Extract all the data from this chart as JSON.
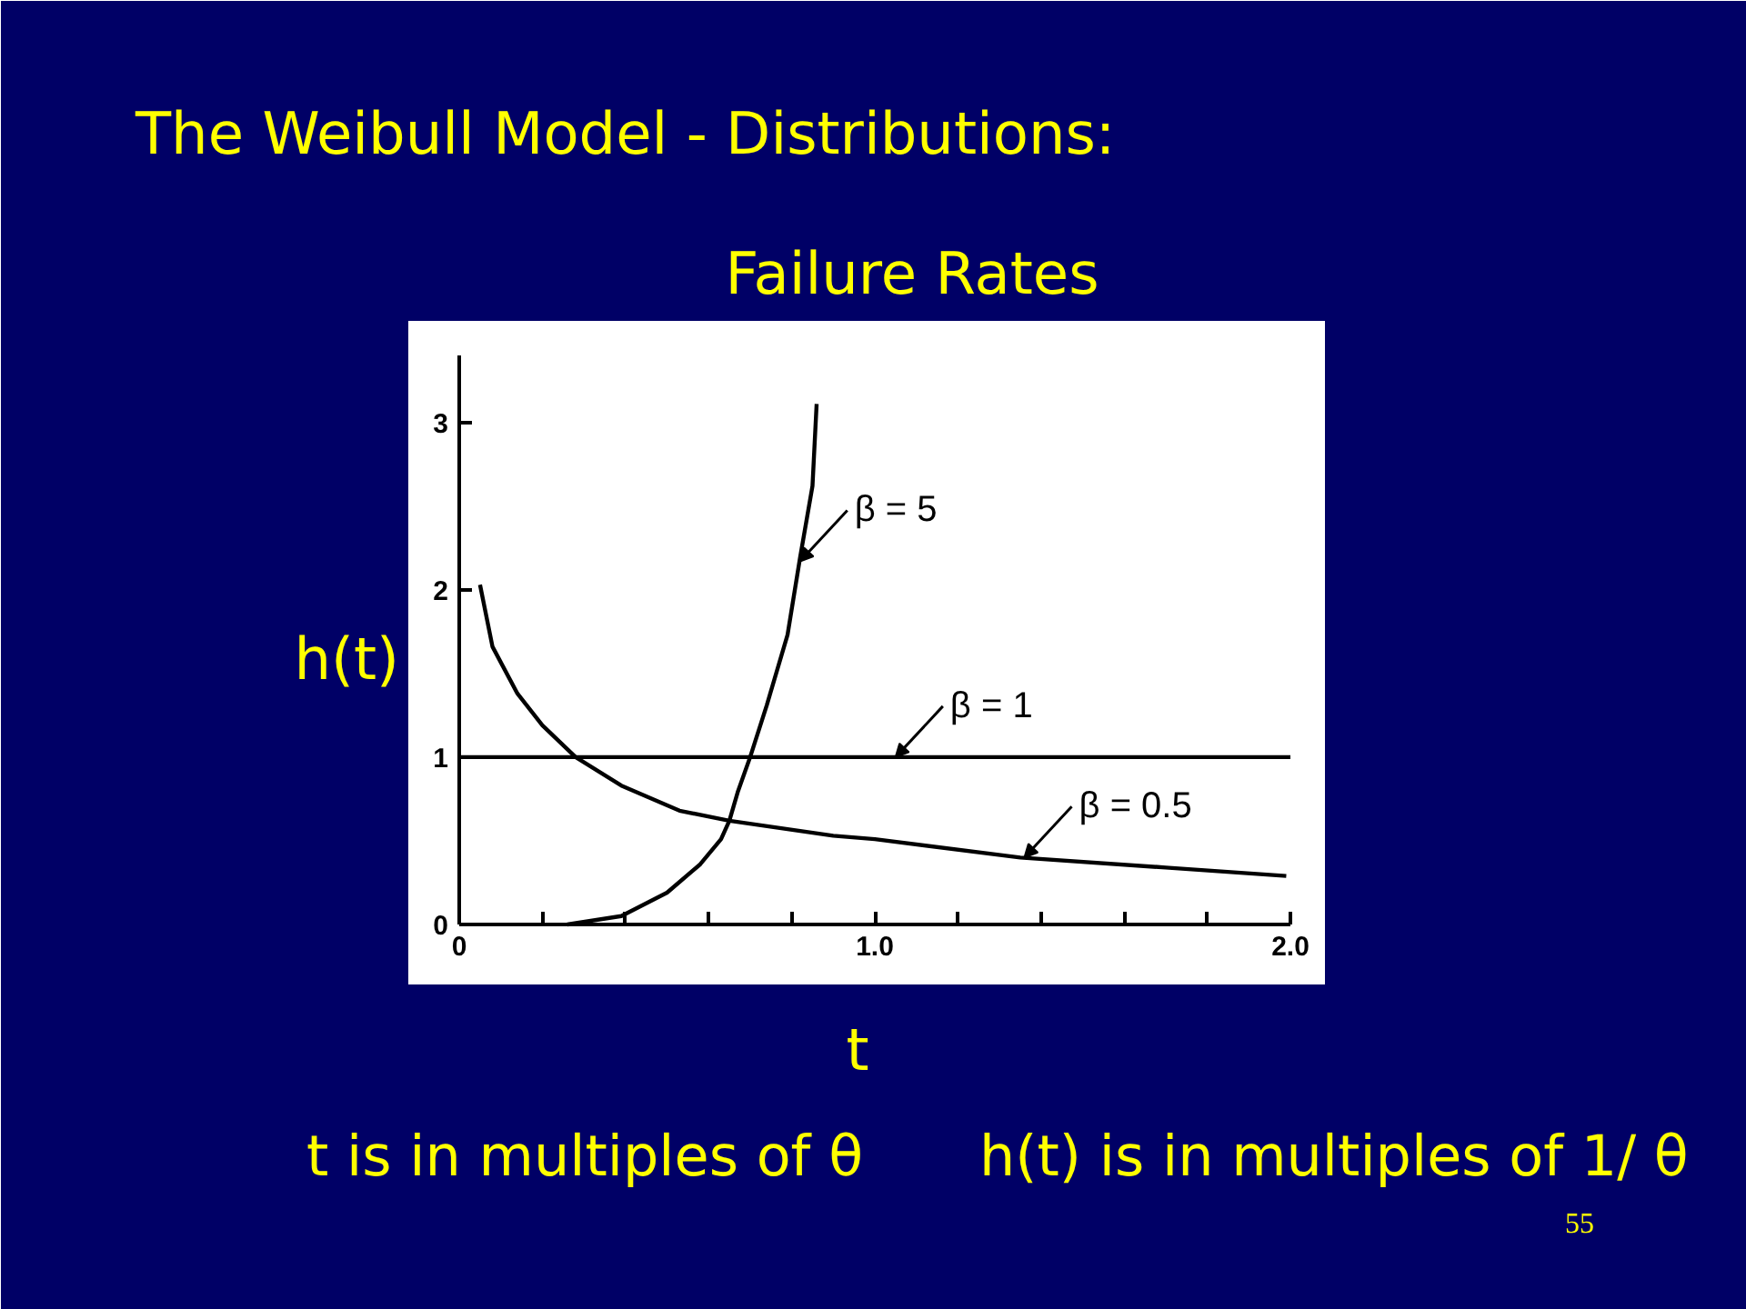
{
  "chart_data": {
    "type": "line",
    "title": "The Weibull Model - Distributions:",
    "subtitle": "Failure Rates",
    "xlabel": "t",
    "ylabel": "h(t)",
    "annotations": [
      "t is in multiples of θ",
      "h(t) is in multiples of 1/ θ",
      "55",
      {
        "text": "β = 5",
        "x": 0.82,
        "y": 2.17
      },
      {
        "text": "β = 1",
        "x": 1.05,
        "y": 1
      },
      {
        "text": "β = 0.5",
        "x": 1.36,
        "y": 0.4
      }
    ],
    "series": [
      {
        "color": "#000000",
        "x": [
          0.26,
          0.39,
          0.5,
          0.58,
          0.63,
          0.65,
          0.67,
          0.7,
          0.74,
          0.79,
          0.82,
          0.85,
          0.86
        ],
        "values": [
          0,
          0.05,
          0.19,
          0.36,
          0.51,
          0.62,
          0.79,
          1.0,
          1.31,
          1.73,
          2.19,
          2.62,
          3.11
        ]
      },
      {
        "color": "#000000",
        "x": [
          0,
          2
        ],
        "values": [
          1,
          1
        ]
      },
      {
        "color": "#000000",
        "x": [
          0.05,
          0.08,
          0.14,
          0.2,
          0.28,
          0.39,
          0.53,
          0.65,
          0.9,
          1.0,
          1.35,
          1.7,
          1.99
        ],
        "values": [
          2.03,
          1.66,
          1.38,
          1.19,
          1.0,
          0.83,
          0.68,
          0.62,
          0.53,
          0.51,
          0.4,
          0.34,
          0.29
        ]
      }
    ],
    "xlim": [
      0,
      2
    ],
    "ylim": [
      0,
      3.4
    ],
    "xticks": [
      0,
      {
        "value": 0.2,
        "label": null
      },
      {
        "value": 0.4,
        "label": null
      },
      {
        "value": 0.6,
        "label": null
      },
      {
        "value": 0.8,
        "label": null
      },
      {
        "value": 1,
        "label": "1.0"
      },
      {
        "value": 1.2,
        "label": null
      },
      {
        "value": 1.4,
        "label": null
      },
      {
        "value": 1.6,
        "label": null
      },
      {
        "value": 1.8,
        "label": null
      },
      {
        "value": 2,
        "label": "2.0"
      }
    ],
    "yticks": [
      0,
      1,
      2,
      3
    ],
    "grid": false,
    "line_style": "solid"
  }
}
